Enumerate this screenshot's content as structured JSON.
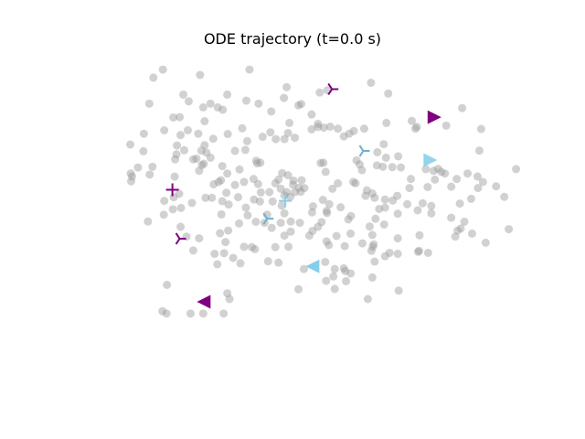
{
  "chart_data": {
    "type": "scatter",
    "title": "ODE trajectory (t=0.0 s)",
    "xlabel": "",
    "ylabel": "",
    "axes_visible": false,
    "grid": false,
    "xlim": [
      0,
      1
    ],
    "ylim": [
      0,
      1
    ],
    "series": [
      {
        "marker": "circle",
        "color": "#999999",
        "opacity": 0.45,
        "points": [
          [
            0.177,
            0.927
          ],
          [
            0.198,
            0.951
          ],
          [
            0.28,
            0.935
          ],
          [
            0.389,
            0.951
          ],
          [
            0.465,
            0.867
          ],
          [
            0.471,
            0.899
          ],
          [
            0.544,
            0.883
          ],
          [
            0.561,
            0.89
          ],
          [
            0.657,
            0.912
          ],
          [
            0.695,
            0.88
          ],
          [
            0.168,
            0.85
          ],
          [
            0.221,
            0.809
          ],
          [
            0.235,
            0.81
          ],
          [
            0.287,
            0.839
          ],
          [
            0.303,
            0.85
          ],
          [
            0.243,
            0.877
          ],
          [
            0.255,
            0.857
          ],
          [
            0.29,
            0.798
          ],
          [
            0.319,
            0.839
          ],
          [
            0.33,
            0.832
          ],
          [
            0.34,
            0.877
          ],
          [
            0.382,
            0.859
          ],
          [
            0.409,
            0.85
          ],
          [
            0.437,
            0.827
          ],
          [
            0.477,
            0.793
          ],
          [
            0.474,
            0.763
          ],
          [
            0.497,
            0.845
          ],
          [
            0.503,
            0.849
          ],
          [
            0.526,
            0.818
          ],
          [
            0.54,
            0.79
          ],
          [
            0.156,
            0.761
          ],
          [
            0.201,
            0.771
          ],
          [
            0.237,
            0.757
          ],
          [
            0.253,
            0.771
          ],
          [
            0.276,
            0.761
          ],
          [
            0.294,
            0.705
          ],
          [
            0.29,
            0.727
          ],
          [
            0.309,
            0.746
          ],
          [
            0.341,
            0.76
          ],
          [
            0.357,
            0.71
          ],
          [
            0.373,
            0.777
          ],
          [
            0.384,
            0.739
          ],
          [
            0.418,
            0.752
          ],
          [
            0.435,
            0.765
          ],
          [
            0.447,
            0.745
          ],
          [
            0.466,
            0.745
          ],
          [
            0.489,
            0.749
          ],
          [
            0.526,
            0.774
          ],
          [
            0.54,
            0.781
          ],
          [
            0.553,
            0.779
          ],
          [
            0.567,
            0.782
          ],
          [
            0.584,
            0.776
          ],
          [
            0.597,
            0.753
          ],
          [
            0.609,
            0.761
          ],
          [
            0.619,
            0.769
          ],
          [
            0.642,
            0.776
          ],
          [
            0.685,
            0.73
          ],
          [
            0.691,
            0.793
          ],
          [
            0.747,
            0.799
          ],
          [
            0.755,
            0.776
          ],
          [
            0.758,
            0.781
          ],
          [
            0.823,
            0.785
          ],
          [
            0.9,
            0.775
          ],
          [
            0.858,
            0.837
          ],
          [
            0.126,
            0.729
          ],
          [
            0.155,
            0.709
          ],
          [
            0.225,
            0.685
          ],
          [
            0.228,
            0.7
          ],
          [
            0.229,
            0.726
          ],
          [
            0.245,
            0.712
          ],
          [
            0.265,
            0.685
          ],
          [
            0.272,
            0.687
          ],
          [
            0.283,
            0.711
          ],
          [
            0.288,
            0.672
          ],
          [
            0.303,
            0.69
          ],
          [
            0.321,
            0.618
          ],
          [
            0.329,
            0.665
          ],
          [
            0.34,
            0.643
          ],
          [
            0.367,
            0.655
          ],
          [
            0.38,
            0.713
          ],
          [
            0.404,
            0.681
          ],
          [
            0.406,
            0.673
          ],
          [
            0.413,
            0.675
          ],
          [
            0.461,
            0.644
          ],
          [
            0.474,
            0.638
          ],
          [
            0.486,
            0.622
          ],
          [
            0.504,
            0.623
          ],
          [
            0.546,
            0.674
          ],
          [
            0.552,
            0.675
          ],
          [
            0.557,
            0.648
          ],
          [
            0.584,
            0.614
          ],
          [
            0.618,
            0.618
          ],
          [
            0.625,
            0.682
          ],
          [
            0.632,
            0.67
          ],
          [
            0.637,
            0.653
          ],
          [
            0.671,
            0.706
          ],
          [
            0.67,
            0.667
          ],
          [
            0.683,
            0.663
          ],
          [
            0.69,
            0.69
          ],
          [
            0.704,
            0.662
          ],
          [
            0.723,
            0.661
          ],
          [
            0.778,
            0.656
          ],
          [
            0.795,
            0.651
          ],
          [
            0.798,
            0.625
          ],
          [
            0.745,
            0.627
          ],
          [
            0.805,
            0.657
          ],
          [
            0.812,
            0.648
          ],
          [
            0.82,
            0.643
          ],
          [
            0.846,
            0.627
          ],
          [
            0.87,
            0.643
          ],
          [
            0.892,
            0.634
          ],
          [
            0.904,
            0.618
          ],
          [
            0.896,
            0.711
          ],
          [
            0.717,
            0.694
          ],
          [
            0.127,
            0.643
          ],
          [
            0.143,
            0.661
          ],
          [
            0.169,
            0.64
          ],
          [
            0.175,
            0.663
          ],
          [
            0.224,
            0.634
          ],
          [
            0.234,
            0.583
          ],
          [
            0.278,
            0.651
          ],
          [
            0.284,
            0.668
          ],
          [
            0.31,
            0.611
          ],
          [
            0.326,
            0.623
          ],
          [
            0.338,
            0.586
          ],
          [
            0.357,
            0.609
          ],
          [
            0.377,
            0.618
          ],
          [
            0.398,
            0.627
          ],
          [
            0.408,
            0.612
          ],
          [
            0.414,
            0.587
          ],
          [
            0.433,
            0.588
          ],
          [
            0.446,
            0.614
          ],
          [
            0.453,
            0.625
          ],
          [
            0.458,
            0.598
          ],
          [
            0.471,
            0.588
          ],
          [
            0.485,
            0.61
          ],
          [
            0.489,
            0.588
          ],
          [
            0.498,
            0.601
          ],
          [
            0.502,
            0.589
          ],
          [
            0.51,
            0.6
          ],
          [
            0.551,
            0.565
          ],
          [
            0.572,
            0.598
          ],
          [
            0.623,
            0.614
          ],
          [
            0.648,
            0.593
          ],
          [
            0.66,
            0.584
          ],
          [
            0.688,
            0.566
          ],
          [
            0.715,
            0.577
          ],
          [
            0.742,
            0.6
          ],
          [
            0.782,
            0.603
          ],
          [
            0.834,
            0.604
          ],
          [
            0.893,
            0.6
          ],
          [
            0.933,
            0.605
          ],
          [
            0.951,
            0.574
          ],
          [
            0.977,
            0.656
          ],
          [
            0.128,
            0.62
          ],
          [
            0.13,
            0.634
          ],
          [
            0.222,
            0.573
          ],
          [
            0.238,
            0.541
          ],
          [
            0.262,
            0.556
          ],
          [
            0.292,
            0.571
          ],
          [
            0.306,
            0.571
          ],
          [
            0.329,
            0.561
          ],
          [
            0.343,
            0.551
          ],
          [
            0.364,
            0.573
          ],
          [
            0.381,
            0.542
          ],
          [
            0.399,
            0.566
          ],
          [
            0.412,
            0.56
          ],
          [
            0.44,
            0.56
          ],
          [
            0.46,
            0.548
          ],
          [
            0.466,
            0.578
          ],
          [
            0.479,
            0.574
          ],
          [
            0.529,
            0.546
          ],
          [
            0.559,
            0.532
          ],
          [
            0.565,
            0.552
          ],
          [
            0.59,
            0.543
          ],
          [
            0.645,
            0.577
          ],
          [
            0.665,
            0.571
          ],
          [
            0.688,
            0.542
          ],
          [
            0.705,
            0.563
          ],
          [
            0.737,
            0.552
          ],
          [
            0.771,
            0.555
          ],
          [
            0.79,
            0.547
          ],
          [
            0.853,
            0.554
          ],
          [
            0.878,
            0.568
          ],
          [
            0.22,
            0.537
          ],
          [
            0.2,
            0.521
          ],
          [
            0.201,
            0.562
          ],
          [
            0.327,
            0.522
          ],
          [
            0.366,
            0.495
          ],
          [
            0.385,
            0.519
          ],
          [
            0.403,
            0.5
          ],
          [
            0.428,
            0.521
          ],
          [
            0.458,
            0.497
          ],
          [
            0.466,
            0.525
          ],
          [
            0.48,
            0.501
          ],
          [
            0.527,
            0.528
          ],
          [
            0.548,
            0.499
          ],
          [
            0.56,
            0.526
          ],
          [
            0.607,
            0.507
          ],
          [
            0.613,
            0.517
          ],
          [
            0.654,
            0.486
          ],
          [
            0.667,
            0.509
          ],
          [
            0.675,
            0.538
          ],
          [
            0.716,
            0.524
          ],
          [
            0.76,
            0.534
          ],
          [
            0.79,
            0.525
          ],
          [
            0.834,
            0.512
          ],
          [
            0.843,
            0.456
          ],
          [
            0.848,
            0.474
          ],
          [
            0.855,
            0.48
          ],
          [
            0.88,
            0.465
          ],
          [
            0.863,
            0.5
          ],
          [
            0.961,
            0.478
          ],
          [
            0.91,
            0.438
          ],
          [
            0.165,
            0.501
          ],
          [
            0.237,
            0.485
          ],
          [
            0.25,
            0.456
          ],
          [
            0.278,
            0.451
          ],
          [
            0.324,
            0.466
          ],
          [
            0.342,
            0.474
          ],
          [
            0.336,
            0.44
          ],
          [
            0.377,
            0.426
          ],
          [
            0.394,
            0.425
          ],
          [
            0.422,
            0.497
          ],
          [
            0.438,
            0.482
          ],
          [
            0.48,
            0.471
          ],
          [
            0.521,
            0.459
          ],
          [
            0.54,
            0.485
          ],
          [
            0.559,
            0.442
          ],
          [
            0.581,
            0.458
          ],
          [
            0.599,
            0.428
          ],
          [
            0.612,
            0.465
          ],
          [
            0.638,
            0.436
          ],
          [
            0.66,
            0.461
          ],
          [
            0.663,
            0.433
          ],
          [
            0.686,
            0.492
          ],
          [
            0.716,
            0.451
          ],
          [
            0.761,
            0.411
          ],
          [
            0.764,
            0.46
          ],
          [
            0.698,
            0.408
          ],
          [
            0.661,
            0.426
          ],
          [
            0.564,
            0.431
          ],
          [
            0.528,
            0.473
          ],
          [
            0.5,
            0.497
          ],
          [
            0.265,
            0.415
          ],
          [
            0.312,
            0.405
          ],
          [
            0.318,
            0.374
          ],
          [
            0.333,
            0.407
          ],
          [
            0.353,
            0.393
          ],
          [
            0.369,
            0.377
          ],
          [
            0.401,
            0.419
          ],
          [
            0.43,
            0.383
          ],
          [
            0.446,
            0.425
          ],
          [
            0.453,
            0.379
          ],
          [
            0.466,
            0.459
          ],
          [
            0.475,
            0.426
          ],
          [
            0.509,
            0.36
          ],
          [
            0.556,
            0.381
          ],
          [
            0.577,
            0.36
          ],
          [
            0.597,
            0.362
          ],
          [
            0.6,
            0.354
          ],
          [
            0.612,
            0.347
          ],
          [
            0.665,
            0.382
          ],
          [
            0.658,
            0.414
          ],
          [
            0.688,
            0.398
          ],
          [
            0.716,
            0.405
          ],
          [
            0.763,
            0.414
          ],
          [
            0.783,
            0.408
          ],
          [
            0.66,
            0.335
          ],
          [
            0.602,
            0.324
          ],
          [
            0.574,
            0.338
          ],
          [
            0.497,
            0.3
          ],
          [
            0.558,
            0.325
          ],
          [
            0.577,
            0.301
          ],
          [
            0.207,
            0.313
          ],
          [
            0.345,
            0.271
          ],
          [
            0.34,
            0.288
          ],
          [
            0.65,
            0.271
          ],
          [
            0.718,
            0.296
          ],
          [
            0.197,
            0.235
          ],
          [
            0.206,
            0.228
          ],
          [
            0.259,
            0.228
          ],
          [
            0.287,
            0.228
          ],
          [
            0.332,
            0.228
          ]
        ]
      },
      {
        "marker": "plus",
        "color": "#800080",
        "opacity": 1.0,
        "points": [
          [
            0.219,
            0.595
          ]
        ]
      },
      {
        "marker": "plus",
        "color": "#87ceeb",
        "opacity": 1.0,
        "points": [
          [
            0.468,
            0.562
          ]
        ]
      },
      {
        "marker": "tri_right",
        "color": "#800080",
        "opacity": 1.0,
        "points": [
          [
            0.796,
            0.81
          ]
        ]
      },
      {
        "marker": "tri_right",
        "color": "#87ceeb",
        "opacity": 0.9,
        "points": [
          [
            0.787,
            0.683
          ]
        ]
      },
      {
        "marker": "tri_left",
        "color": "#87ceeb",
        "opacity": 1.0,
        "points": [
          [
            0.529,
            0.368
          ]
        ]
      },
      {
        "marker": "tri_left",
        "color": "#800080",
        "opacity": 1.0,
        "points": [
          [
            0.289,
            0.263
          ]
        ]
      },
      {
        "marker": "threeway_right",
        "color": "#800080",
        "opacity": 1.0,
        "points": [
          [
            0.571,
            0.893
          ],
          [
            0.235,
            0.45
          ]
        ]
      },
      {
        "marker": "threeway_right",
        "color": "#6fb0d0",
        "opacity": 1.0,
        "points": [
          [
            0.64,
            0.71
          ],
          [
            0.428,
            0.509
          ]
        ]
      }
    ]
  }
}
